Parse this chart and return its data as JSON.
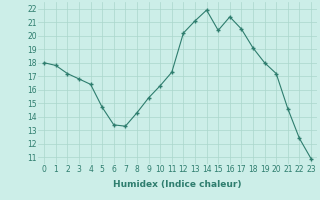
{
  "x": [
    0,
    1,
    2,
    3,
    4,
    5,
    6,
    7,
    8,
    9,
    10,
    11,
    12,
    13,
    14,
    15,
    16,
    17,
    18,
    19,
    20,
    21,
    22,
    23
  ],
  "y": [
    18.0,
    17.8,
    17.2,
    16.8,
    16.4,
    14.7,
    13.4,
    13.3,
    14.3,
    15.4,
    16.3,
    17.3,
    20.2,
    21.1,
    21.9,
    20.4,
    21.4,
    20.5,
    19.1,
    18.0,
    17.2,
    14.6,
    12.4,
    10.9
  ],
  "xlabel": "Humidex (Indice chaleur)",
  "xlim": [
    -0.5,
    23.5
  ],
  "ylim": [
    10.5,
    22.5
  ],
  "yticks": [
    11,
    12,
    13,
    14,
    15,
    16,
    17,
    18,
    19,
    20,
    21,
    22
  ],
  "xticks": [
    0,
    1,
    2,
    3,
    4,
    5,
    6,
    7,
    8,
    9,
    10,
    11,
    12,
    13,
    14,
    15,
    16,
    17,
    18,
    19,
    20,
    21,
    22,
    23
  ],
  "line_color": "#2e7d6e",
  "marker": "+",
  "marker_size": 3.5,
  "marker_lw": 1.0,
  "bg_color": "#cceee8",
  "grid_color": "#aad6cc",
  "label_fontsize": 6.5,
  "tick_fontsize": 5.5
}
